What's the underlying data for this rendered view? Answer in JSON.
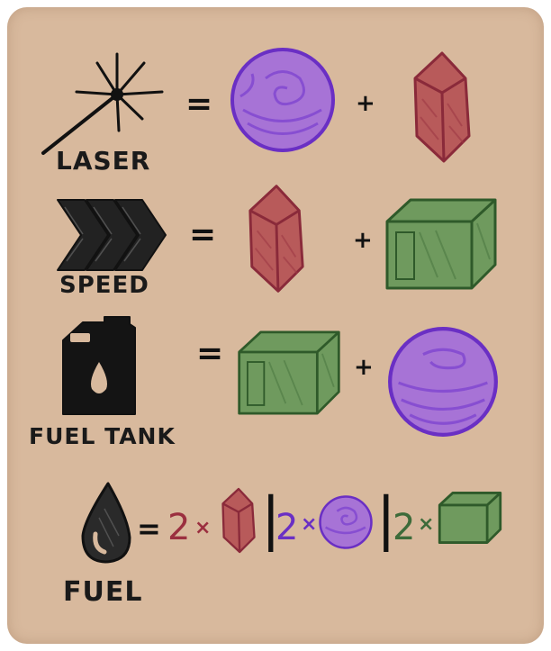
{
  "recipes": [
    {
      "name": "LASER",
      "ingredients": [
        "orb",
        "crystal"
      ]
    },
    {
      "name": "SPEED",
      "ingredients": [
        "crystal",
        "cube"
      ]
    },
    {
      "name": "FUEL TANK",
      "ingredients": [
        "cube",
        "orb"
      ]
    }
  ],
  "fuel": {
    "name": "FUEL",
    "options": [
      {
        "count": "2",
        "multiplier": "×",
        "resource": "crystal",
        "color": "#9b2f3f"
      },
      {
        "count": "2",
        "multiplier": "×",
        "resource": "orb",
        "color": "#6a2fc4"
      },
      {
        "count": "2",
        "multiplier": "×",
        "resource": "cube",
        "color": "#3d6b3a"
      }
    ]
  },
  "symbols": {
    "equals": "=",
    "plus": "+",
    "separator": "|"
  },
  "icons": [
    "laser-icon",
    "speed-chevrons-icon",
    "fuel-can-icon",
    "fuel-drop-icon",
    "purple-orb-icon",
    "red-crystal-icon",
    "green-cube-icon"
  ],
  "colors": {
    "background": "#d8b99d",
    "orb": "#a773d6",
    "crystal": "#b85a5a",
    "cube": "#6f9a5e",
    "ink": "#1a1a1a"
  }
}
